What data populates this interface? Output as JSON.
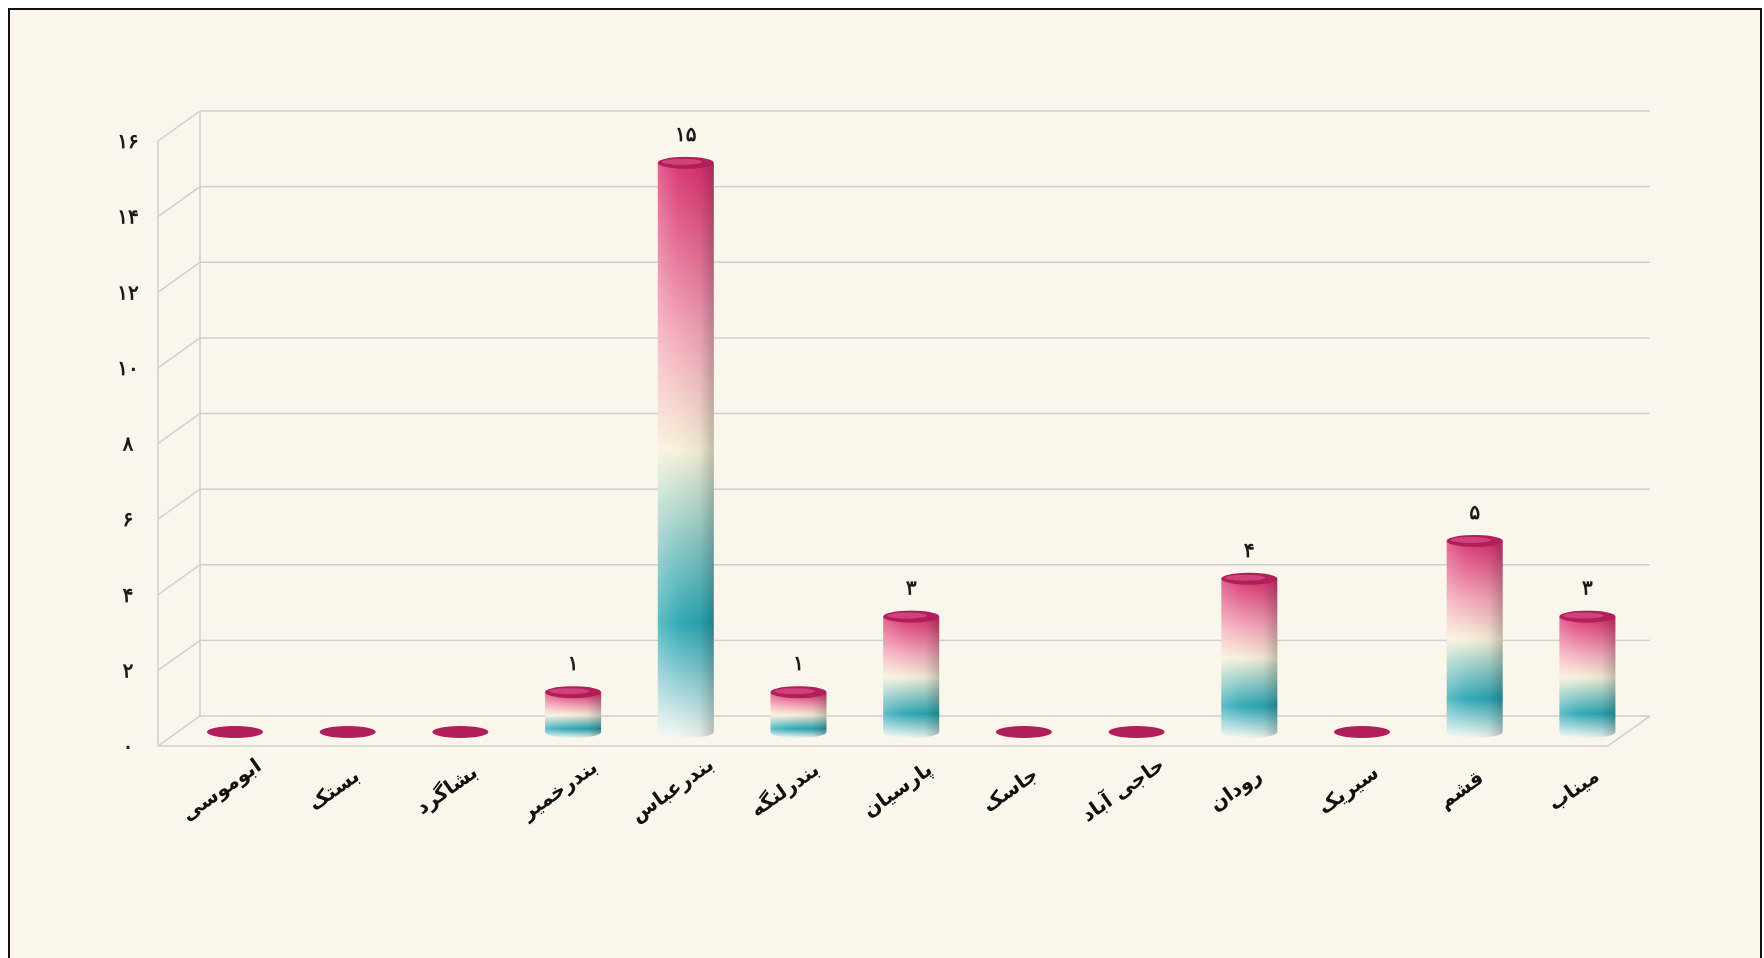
{
  "chart_data": {
    "type": "bar",
    "style": "3d-cylinder",
    "categories": [
      "ابوموسی",
      "بستک",
      "بشاگرد",
      "بندرخمیر",
      "بندرعباس",
      "بندرلنگه",
      "پارسیان",
      "جاسک",
      "حاجی آباد",
      "رودان",
      "سیریک",
      "قشم",
      "میناب"
    ],
    "values": [
      0,
      0,
      0,
      1,
      15,
      1,
      3,
      0,
      0,
      4,
      0,
      5,
      3
    ],
    "value_labels": [
      "",
      "",
      "",
      "۱",
      "۱۵",
      "۱",
      "۳",
      "",
      "",
      "۴",
      "",
      "۵",
      "۳"
    ],
    "y_ticks": [
      0,
      2,
      4,
      6,
      8,
      10,
      12,
      14,
      16
    ],
    "y_tick_labels": [
      "۰",
      "۲",
      "۴",
      "۶",
      "۸",
      "۱۰",
      "۱۲",
      "۱۴",
      "۱۶"
    ],
    "ylim": [
      0,
      16
    ],
    "grid": true,
    "legend": "none",
    "title": "",
    "xlabel": "",
    "ylabel": "",
    "colors": {
      "top": "#d8306e",
      "pink": "#f3a7b8",
      "cream": "#f7f0d8",
      "teal": "#2aa6b4",
      "bottom": "#f4f7f2",
      "zero_disc": "#b21e5a",
      "grid": "#cfcfcf",
      "background": "#fbf6ec"
    }
  }
}
